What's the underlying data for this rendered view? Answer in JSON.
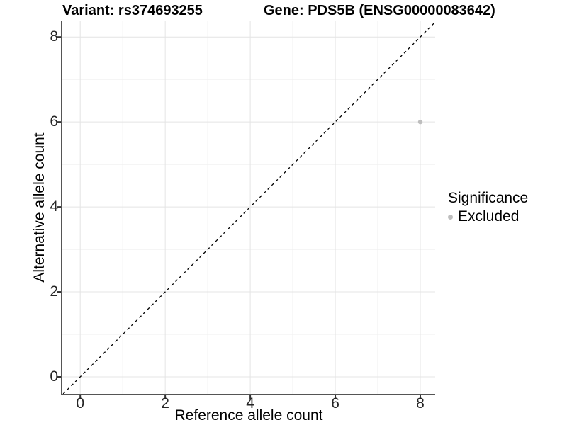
{
  "titles": {
    "variant": "Variant: rs374693255",
    "gene": "Gene: PDS5B (ENSG00000083642)"
  },
  "legend": {
    "title": "Significance",
    "items": [
      {
        "label": "Excluded",
        "color": "#bebebe"
      }
    ]
  },
  "chart_data": {
    "type": "scatter",
    "title": "Variant: rs374693255   Gene: PDS5B (ENSG00000083642)",
    "xlabel": "Reference allele count",
    "ylabel": "Alternative allele count",
    "xlim": [
      -0.42,
      8.35
    ],
    "ylim": [
      -0.4,
      8.37
    ],
    "x_ticks": [
      0,
      2,
      4,
      6,
      8
    ],
    "y_ticks": [
      0,
      2,
      4,
      6,
      8
    ],
    "x_minor_ticks": [
      1,
      3,
      5,
      7
    ],
    "y_minor_ticks": [
      1,
      3,
      5,
      7
    ],
    "grid": true,
    "legend_position": "right",
    "series": [
      {
        "name": "Excluded",
        "points": [
          {
            "x": 8,
            "y": 6
          }
        ],
        "color": "#bebebe"
      }
    ],
    "reference_line": {
      "kind": "identity",
      "style": "dashed",
      "color": "#000000"
    },
    "style_colors": {
      "axis_line": "#555555",
      "tick_mark": "#333333",
      "grid_major": "#e4e4e4",
      "grid_minor": "#efefef",
      "point": "#bebebe",
      "background": "#ffffff"
    }
  }
}
